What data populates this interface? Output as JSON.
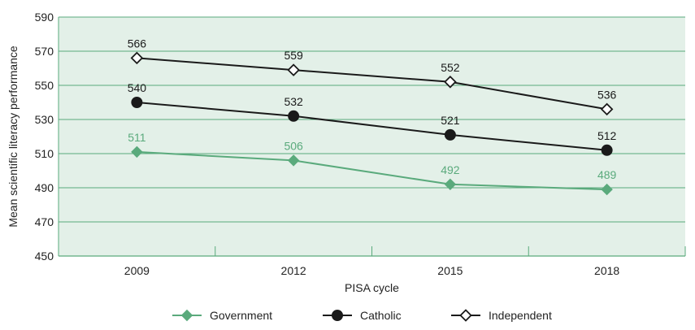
{
  "chart_data": {
    "type": "line",
    "categories": [
      "2009",
      "2012",
      "2015",
      "2018"
    ],
    "xlabel": "PISA cycle",
    "ylabel": "Mean scientific literacy performance",
    "ylim": [
      450,
      590
    ],
    "yticks": [
      450,
      470,
      490,
      510,
      530,
      550,
      570,
      590
    ],
    "grid": true,
    "legend_position": "bottom",
    "series": [
      {
        "name": "Government",
        "values": [
          511,
          506,
          492,
          489
        ],
        "color": "#5aaa7c",
        "marker": "diamond-filled"
      },
      {
        "name": "Catholic",
        "values": [
          540,
          532,
          521,
          512
        ],
        "color": "#1a1a1a",
        "marker": "circle-filled"
      },
      {
        "name": "Independent",
        "values": [
          566,
          559,
          552,
          536
        ],
        "color": "#1a1a1a",
        "marker": "diamond-open"
      }
    ],
    "plot_background": "#e3f0e8",
    "grid_color": "#5aaa7c"
  }
}
